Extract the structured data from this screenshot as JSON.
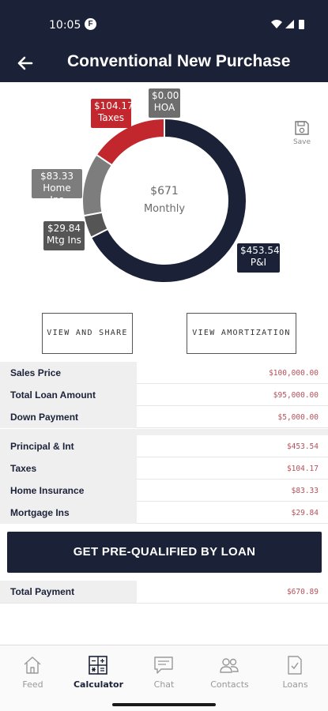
{
  "status_bar": {
    "time": "10:05",
    "app_icon": "F"
  },
  "app_bar": {
    "title": "Conventional New Purchase",
    "back_icon": "arrow-left-icon"
  },
  "chart_data": {
    "type": "pie",
    "center_amount": "$671",
    "center_label": "Monthly",
    "slices": [
      {
        "name": "P&I",
        "label": "$453.54",
        "value": 453.54,
        "color": "#1b2238"
      },
      {
        "name": "Mtg Ins",
        "label": "$29.84",
        "value": 29.84,
        "color": "#555555"
      },
      {
        "name": "Home Ins",
        "label": "$83.33",
        "value": 83.33,
        "color": "#7d7d7d"
      },
      {
        "name": "Taxes",
        "label": "$104.17",
        "value": 104.17,
        "color": "#c1272d"
      },
      {
        "name": "HOA",
        "label": "$0.00",
        "value": 0.0,
        "color": "#6e6e6e"
      }
    ]
  },
  "save": {
    "label": "Save"
  },
  "buttons": {
    "view_share": "VIEW AND SHARE",
    "view_amortization": "VIEW AMORTIZATION",
    "cta": "GET PRE-QUALIFIED BY LOAN"
  },
  "loan_table": [
    {
      "label": "Sales Price",
      "value": "$100,000.00"
    },
    {
      "label": "Total Loan Amount",
      "value": "$95,000.00"
    },
    {
      "label": "Down Payment",
      "value": "$5,000.00"
    }
  ],
  "payment_table": [
    {
      "label": "Principal & Int",
      "value": "$453.54"
    },
    {
      "label": "Taxes",
      "value": "$104.17"
    },
    {
      "label": "Home Insurance",
      "value": "$83.33"
    },
    {
      "label": "Mortgage Ins",
      "value": "$29.84"
    }
  ],
  "total": {
    "label": "Total Payment",
    "value": "$670.89"
  },
  "nav": [
    {
      "label": "Feed",
      "icon": "home-icon",
      "active": false
    },
    {
      "label": "Calculator",
      "icon": "calculator-icon",
      "active": true
    },
    {
      "label": "Chat",
      "icon": "chat-icon",
      "active": false
    },
    {
      "label": "Contacts",
      "icon": "contacts-icon",
      "active": false
    },
    {
      "label": "Loans",
      "icon": "document-check-icon",
      "active": false
    }
  ],
  "colors": {
    "navy": "#1b2238",
    "red": "#c1272d",
    "value_text": "#b4505a"
  }
}
